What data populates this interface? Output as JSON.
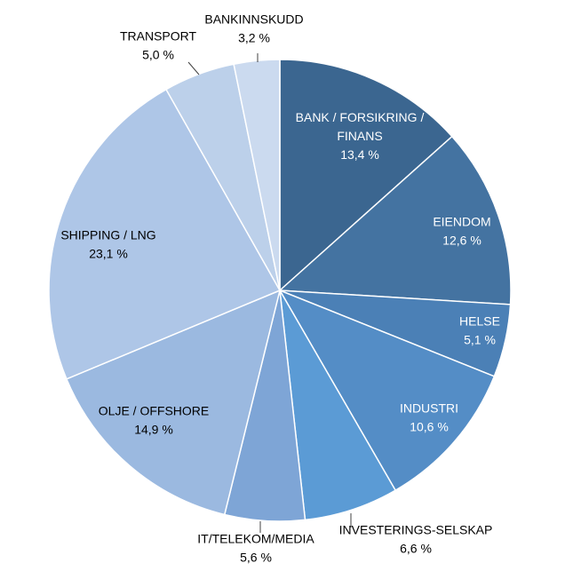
{
  "chart_data": {
    "type": "pie",
    "title": "",
    "slices": [
      {
        "name": "BANK / FORSIKRING / FINANS",
        "lines": [
          "BANK / FORSIKRING /",
          "FINANS"
        ],
        "value": 13.4,
        "value_label": "13,4 %",
        "color": "#3b6690",
        "label_color": "#ffffff"
      },
      {
        "name": "EIENDOM",
        "lines": [
          "EIENDOM"
        ],
        "value": 12.6,
        "value_label": "12,6 %",
        "color": "#4473a1",
        "label_color": "#ffffff"
      },
      {
        "name": "HELSE",
        "lines": [
          "HELSE"
        ],
        "value": 5.1,
        "value_label": "5,1 %",
        "color": "#4b80b6",
        "label_color": "#ffffff"
      },
      {
        "name": "INDUSTRI",
        "lines": [
          "INDUSTRI"
        ],
        "value": 10.6,
        "value_label": "10,6 %",
        "color": "#548dc6",
        "label_color": "#ffffff"
      },
      {
        "name": "INVESTERINGS-SELSKAP",
        "lines": [
          "INVESTERINGS-SELSKAP"
        ],
        "value": 6.6,
        "value_label": "6,6 %",
        "color": "#5b9bd5",
        "label_color": "#000000"
      },
      {
        "name": "IT/TELEKOM/MEDIA",
        "lines": [
          "IT/TELEKOM/MEDIA"
        ],
        "value": 5.6,
        "value_label": "5,6 %",
        "color": "#7ea5d6",
        "label_color": "#000000"
      },
      {
        "name": "OLJE / OFFSHORE",
        "lines": [
          "OLJE / OFFSHORE"
        ],
        "value": 14.9,
        "value_label": "14,9 %",
        "color": "#9bb9e0",
        "label_color": "#000000"
      },
      {
        "name": "SHIPPING / LNG",
        "lines": [
          "SHIPPING / LNG"
        ],
        "value": 23.1,
        "value_label": "23,1 %",
        "color": "#aec6e7",
        "label_color": "#000000"
      },
      {
        "name": "TRANSPORT",
        "lines": [
          "TRANSPORT"
        ],
        "value": 5.0,
        "value_label": "5,0 %",
        "color": "#bcd0ea",
        "label_color": "#000000"
      },
      {
        "name": "BANKINNSKUDD",
        "lines": [
          "BANKINNSKUDD"
        ],
        "value": 3.2,
        "value_label": "3,2 %",
        "color": "#cbdaef",
        "label_color": "#000000"
      }
    ]
  }
}
